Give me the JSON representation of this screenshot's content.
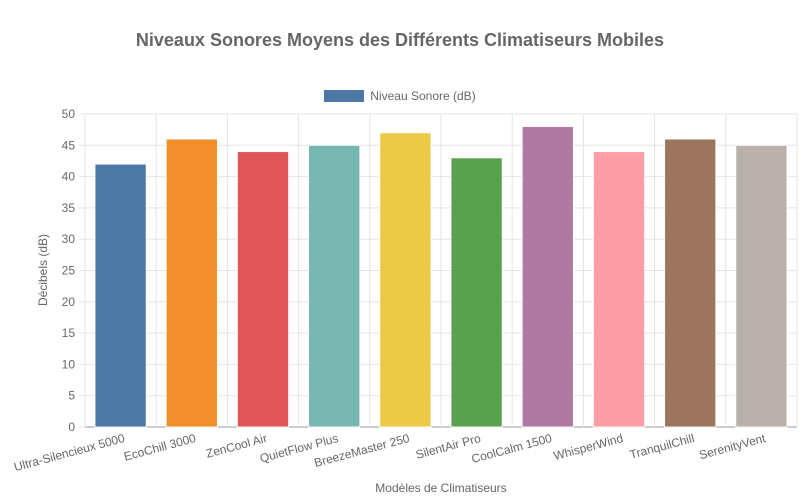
{
  "chart_data": {
    "type": "bar",
    "title": "Niveaux Sonores Moyens des Différents Climatiseurs Mobiles",
    "xlabel": "Modèles de Climatiseurs",
    "ylabel": "Décibels (dB)",
    "ylim": [
      0,
      50
    ],
    "yticks": [
      0,
      5,
      10,
      15,
      20,
      25,
      30,
      35,
      40,
      45,
      50
    ],
    "grid": true,
    "legend_position": "top",
    "categories": [
      "Ultra-Silencieux 5000",
      "EcoChill 3000",
      "ZenCool Air",
      "QuietFlow Plus",
      "BreezeMaster 250",
      "SilentAir Pro",
      "CoolCalm 1500",
      "WhisperWind",
      "TranquilChill",
      "SerenityVent"
    ],
    "series": [
      {
        "name": "Niveau Sonore (dB)",
        "values": [
          42,
          46,
          44,
          45,
          47,
          43,
          48,
          44,
          46,
          45
        ],
        "colors": [
          "#4e79a7",
          "#f28e2b",
          "#e15759",
          "#76b7b2",
          "#edc948",
          "#59a14f",
          "#af7aa1",
          "#ff9da7",
          "#9c755f",
          "#bab0ac"
        ]
      }
    ]
  }
}
